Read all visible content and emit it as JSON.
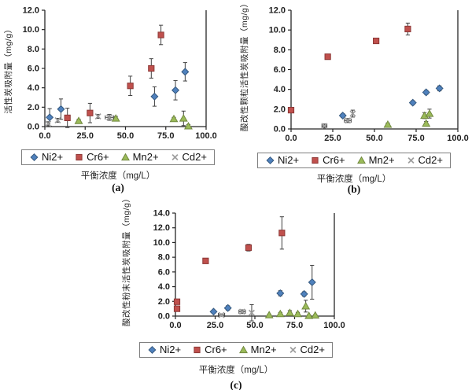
{
  "figure": {
    "background": "#ffffff",
    "axis_color": "#262626",
    "error_bar_color": "#3f3f3f"
  },
  "chart_data": [
    {
      "type": "scatter",
      "caption": "(a)",
      "ylabel": "活性炭吸附量（mg/g）",
      "xlabel": "平衡浓度（mg/L）",
      "xlim": [
        0,
        100
      ],
      "ylim": [
        0,
        12
      ],
      "xticks": [
        0,
        25,
        50,
        75,
        100
      ],
      "xtick_labels": [
        "0.0",
        "25.0",
        "50.0",
        "75.0",
        "100.0"
      ],
      "yticks": [
        0,
        2,
        4,
        6,
        8,
        10,
        12
      ],
      "ytick_labels": [
        "0.0",
        "2.0",
        "4.0",
        "6.0",
        "8.0",
        "10.0",
        "12.0"
      ],
      "grid": false,
      "legend_position": "bottom",
      "series": [
        {
          "name": "Ni2+",
          "marker": "diamond",
          "color": "#4F81BD",
          "edge": "#36597F",
          "points": [
            {
              "x": 3,
              "y": 0.95,
              "ye": 0.9
            },
            {
              "x": 10,
              "y": 1.8,
              "ye": 1.05
            },
            {
              "x": 68,
              "y": 3.1,
              "ye": 1.0
            },
            {
              "x": 81,
              "y": 3.75,
              "ye": 1.0
            },
            {
              "x": 87,
              "y": 5.65,
              "ye": 0.95
            }
          ]
        },
        {
          "name": "Cr6+",
          "marker": "square",
          "color": "#C0504D",
          "edge": "#8C3836",
          "points": [
            {
              "x": 14,
              "y": 0.9,
              "ye": 1.0
            },
            {
              "x": 28,
              "y": 1.4,
              "ye": 1.0
            },
            {
              "x": 53,
              "y": 4.2,
              "ye": 1.0
            },
            {
              "x": 66,
              "y": 6.0,
              "ye": 1.0
            },
            {
              "x": 72,
              "y": 9.45,
              "ye": 1.0
            }
          ]
        },
        {
          "name": "Mn2+",
          "marker": "triangle",
          "color": "#9BBB59",
          "edge": "#71893F",
          "points": [
            {
              "x": 21,
              "y": 0.6,
              "ye": 0.15
            },
            {
              "x": 44,
              "y": 0.85,
              "ye": 0.2
            },
            {
              "x": 80,
              "y": 0.8,
              "ye": 0.15
            },
            {
              "x": 86,
              "y": 0.85,
              "ye": 0.75
            },
            {
              "x": 89,
              "y": 0.05,
              "ye": 0.15
            }
          ]
        },
        {
          "name": "Cd2+",
          "marker": "x",
          "color": "#9E9E9E",
          "edge": "#9E9E9E",
          "points": [
            {
              "x": 2,
              "y": 0.3,
              "ye": 0.2
            },
            {
              "x": 8,
              "y": 0.65,
              "ye": 0.2
            },
            {
              "x": 33,
              "y": 1.05,
              "ye": 0.2
            },
            {
              "x": 40,
              "y": 0.95,
              "ye": 0.3,
              "xe": 2.5
            }
          ]
        }
      ]
    },
    {
      "type": "scatter",
      "caption": "(b)",
      "ylabel": "酸改性颗粒活性炭吸附量（mg/g）",
      "xlabel": "平衡浓度（mg/L）",
      "xlim": [
        0,
        100
      ],
      "ylim": [
        0,
        12
      ],
      "xticks": [
        0,
        25,
        50,
        75,
        100
      ],
      "xtick_labels": [
        "0.0",
        "25.0",
        "50.0",
        "75.0",
        "100.0"
      ],
      "yticks": [
        0,
        2,
        4,
        6,
        8,
        10,
        12
      ],
      "ytick_labels": [
        "0.0",
        "2.0",
        "4.0",
        "6.0",
        "8.0",
        "10.0",
        "12.0"
      ],
      "grid": false,
      "legend_position": "bottom",
      "series": [
        {
          "name": "Ni2+",
          "marker": "diamond",
          "color": "#4F81BD",
          "edge": "#36597F",
          "points": [
            {
              "x": 31,
              "y": 1.35,
              "ye": 0.2
            },
            {
              "x": 73,
              "y": 2.65,
              "ye": 0.2
            },
            {
              "x": 81,
              "y": 3.7,
              "ye": 0.2
            },
            {
              "x": 89,
              "y": 4.1,
              "ye": 0.25
            }
          ]
        },
        {
          "name": "Cr6+",
          "marker": "square",
          "color": "#C0504D",
          "edge": "#8C3836",
          "points": [
            {
              "x": 0,
              "y": 1.9,
              "ye": 0.15
            },
            {
              "x": 22,
              "y": 7.3,
              "ye": 0.2
            },
            {
              "x": 51,
              "y": 8.9,
              "ye": 0.15
            },
            {
              "x": 70,
              "y": 10.1,
              "ye": 0.6
            }
          ]
        },
        {
          "name": "Mn2+",
          "marker": "triangle",
          "color": "#9BBB59",
          "edge": "#71893F",
          "points": [
            {
              "x": 58,
              "y": 0.45,
              "ye": 0.15
            },
            {
              "x": 80,
              "y": 1.35,
              "ye": 0.3
            },
            {
              "x": 83,
              "y": 1.55,
              "ye": 0.45
            },
            {
              "x": 81,
              "y": 0.55,
              "ye": 0.2
            }
          ]
        },
        {
          "name": "Cd2+",
          "marker": "x",
          "color": "#9E9E9E",
          "edge": "#9E9E9E",
          "points": [
            {
              "x": 20,
              "y": 0.3,
              "ye": 0.2,
              "xe": 1.5
            },
            {
              "x": 34,
              "y": 0.85,
              "ye": 0.2,
              "xe": 2
            },
            {
              "x": 37,
              "y": 1.55,
              "ye": 0.35
            }
          ]
        }
      ]
    },
    {
      "type": "scatter",
      "caption": "(c)",
      "ylabel": "酸改性粉末活性炭吸附量（mg/g）",
      "xlabel": "平衡浓度（mg/L）",
      "xlim": [
        0,
        100
      ],
      "ylim": [
        0,
        14
      ],
      "xticks": [
        0,
        25,
        50,
        75,
        100
      ],
      "xtick_labels": [
        "0.0",
        "25.0",
        "50.0",
        "75.0",
        "100.0"
      ],
      "yticks": [
        0,
        2,
        4,
        6,
        8,
        10,
        12,
        14
      ],
      "ytick_labels": [
        "0.0",
        "2.0",
        "4.0",
        "6.0",
        "8.0",
        "10.0",
        "12.0",
        "14.0"
      ],
      "grid": false,
      "legend_position": "bottom",
      "series": [
        {
          "name": "Ni2+",
          "marker": "diamond",
          "color": "#4F81BD",
          "edge": "#36597F",
          "points": [
            {
              "x": 24,
              "y": 0.6,
              "ye": 0.2
            },
            {
              "x": 33,
              "y": 1.1,
              "ye": 0.3
            },
            {
              "x": 66,
              "y": 3.1,
              "ye": 0.35
            },
            {
              "x": 81,
              "y": 3.0,
              "ye": 0.3
            },
            {
              "x": 86,
              "y": 4.6,
              "ye": 2.3
            }
          ]
        },
        {
          "name": "Cr6+",
          "marker": "square",
          "color": "#C0504D",
          "edge": "#8C3836",
          "points": [
            {
              "x": 1,
              "y": 1.95,
              "ye": 0.2
            },
            {
              "x": 1,
              "y": 1.0,
              "ye": 0.15
            },
            {
              "x": 19,
              "y": 7.5,
              "ye": 0.2
            },
            {
              "x": 46,
              "y": 9.3,
              "ye": 0.45
            },
            {
              "x": 67,
              "y": 11.3,
              "ye": 2.2
            }
          ]
        },
        {
          "name": "Mn2+",
          "marker": "triangle",
          "color": "#9BBB59",
          "edge": "#71893F",
          "points": [
            {
              "x": 59,
              "y": 0.15,
              "ye": 0.1
            },
            {
              "x": 66,
              "y": 0.3,
              "ye": 0.2
            },
            {
              "x": 72,
              "y": 0.45,
              "ye": 0.3
            },
            {
              "x": 77,
              "y": 0.3,
              "ye": 0.2
            },
            {
              "x": 82,
              "y": 1.35,
              "ye": 0.8
            },
            {
              "x": 84,
              "y": 0.05,
              "ye": 0.1
            },
            {
              "x": 88,
              "y": 0.1,
              "ye": 0.1
            }
          ]
        },
        {
          "name": "Cd2+",
          "marker": "x",
          "color": "#9E9E9E",
          "edge": "#9E9E9E",
          "points": [
            {
              "x": 29,
              "y": 0.15,
              "ye": 0.15,
              "xe": 2
            },
            {
              "x": 42,
              "y": 0.6,
              "ye": 0.25,
              "xe": 2
            },
            {
              "x": 48,
              "y": 0.45,
              "ye": 1.1
            }
          ]
        }
      ]
    }
  ]
}
